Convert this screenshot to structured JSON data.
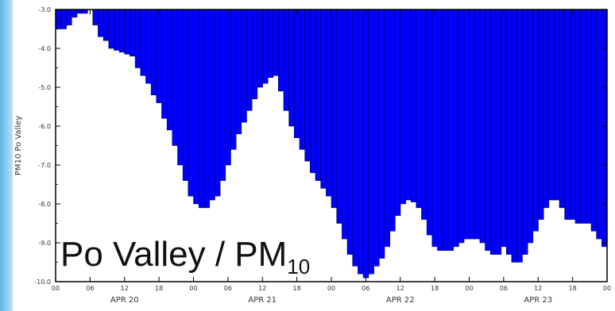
{
  "overlay": {
    "text": "Po Valley / PM",
    "subscript": "10"
  },
  "colors": {
    "bar_fill": "#0000ff",
    "bar_edge": "#000033",
    "left_strip": "#6cbbe8"
  },
  "chart_data": {
    "type": "bar",
    "ylabel": "PM10 Po Valley",
    "ylim": [
      -10.0,
      -3.0
    ],
    "yticks": [
      -3.0,
      -4.0,
      -5.0,
      -6.0,
      -7.0,
      -8.0,
      -9.0,
      -10.0
    ],
    "ytick_labels": [
      "-3.0",
      "-4.0",
      "-5.0",
      "-6.0",
      "-7.0",
      "-8.0",
      "-9.0",
      "-10.0"
    ],
    "hour_tick_labels": [
      "00",
      "06",
      "12",
      "18",
      "00",
      "06",
      "12",
      "18",
      "00",
      "06",
      "12",
      "18",
      "00",
      "06",
      "12",
      "18",
      "00"
    ],
    "date_labels": [
      "APR 20",
      "APR 21",
      "APR 22",
      "APR 23"
    ],
    "grid": false,
    "hours_per_bar": 1,
    "values": [
      -3.5,
      -3.5,
      -3.4,
      -3.2,
      -3.1,
      -3.1,
      -2.9,
      -3.4,
      -3.7,
      -3.8,
      -4.0,
      -4.05,
      -4.1,
      -4.15,
      -4.2,
      -4.5,
      -4.7,
      -4.9,
      -5.2,
      -5.4,
      -5.8,
      -6.1,
      -6.5,
      -7.0,
      -7.4,
      -7.8,
      -8.0,
      -8.1,
      -8.1,
      -7.9,
      -7.8,
      -7.4,
      -7.0,
      -6.6,
      -6.2,
      -5.9,
      -5.6,
      -5.3,
      -5.0,
      -4.9,
      -4.75,
      -4.7,
      -5.1,
      -5.6,
      -6.0,
      -6.3,
      -6.6,
      -6.9,
      -7.2,
      -7.4,
      -7.6,
      -7.8,
      -8.1,
      -8.5,
      -8.9,
      -9.3,
      -9.6,
      -9.8,
      -9.9,
      -9.8,
      -9.6,
      -9.4,
      -9.1,
      -8.7,
      -8.3,
      -8.0,
      -7.9,
      -7.95,
      -8.1,
      -8.4,
      -8.8,
      -9.1,
      -9.2,
      -9.2,
      -9.2,
      -9.1,
      -9.0,
      -8.9,
      -8.9,
      -8.9,
      -9.0,
      -9.2,
      -9.3,
      -9.3,
      -9.1,
      -9.3,
      -9.5,
      -9.5,
      -9.3,
      -9.0,
      -8.7,
      -8.4,
      -8.1,
      -7.9,
      -7.9,
      -8.1,
      -8.4,
      -8.4,
      -8.5,
      -8.5,
      -8.5,
      -8.7,
      -8.9,
      -9.1
    ]
  }
}
